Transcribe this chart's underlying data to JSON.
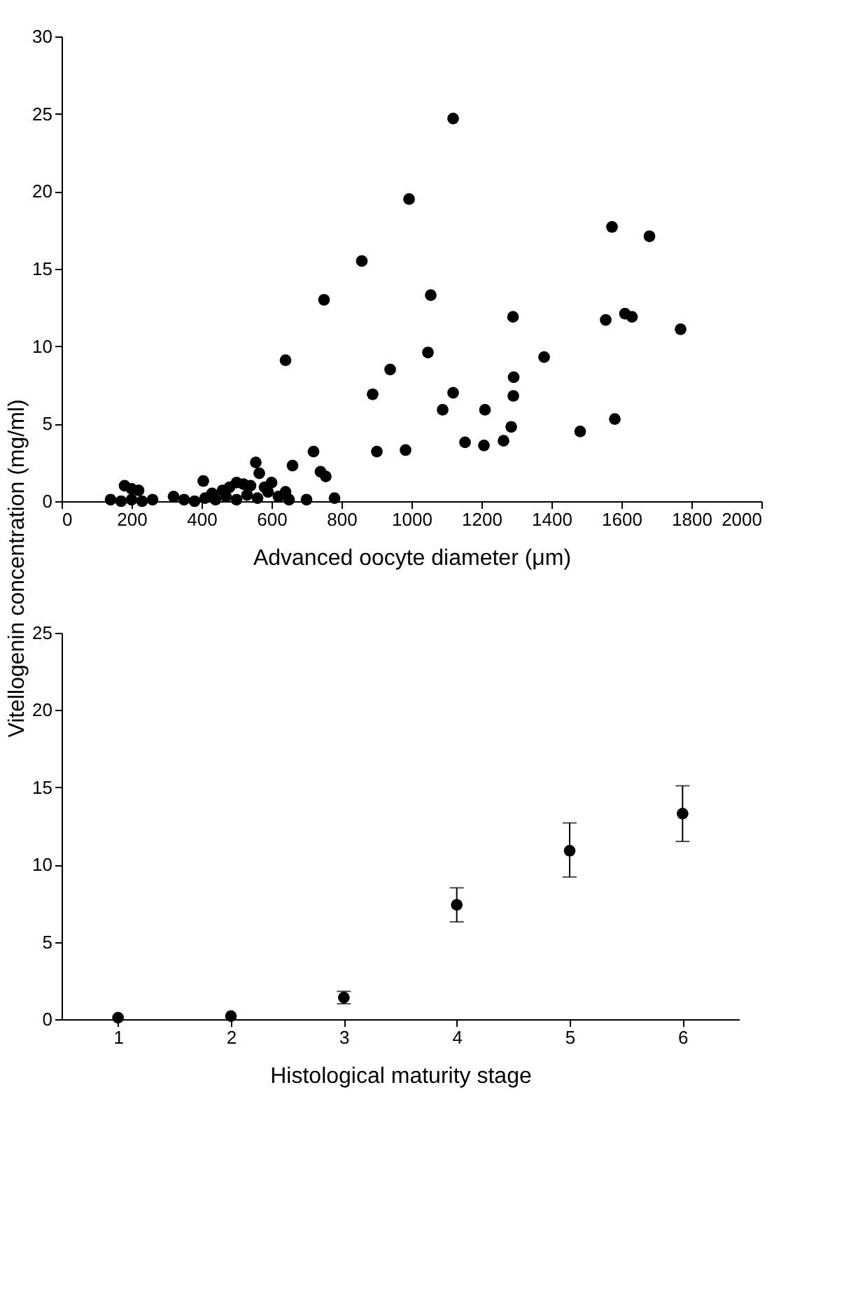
{
  "chart_data": [
    {
      "type": "scatter",
      "xlabel": "Advanced oocyte diameter (μm)",
      "ylabel": "Vitellogenin concentration (mg/ml)",
      "xlim": [
        0,
        2000
      ],
      "xticks": [
        0,
        200,
        400,
        600,
        800,
        1000,
        1200,
        1400,
        1600,
        1800,
        2000
      ],
      "ylim": [
        0,
        30
      ],
      "yticks": [
        0,
        5,
        10,
        15,
        20,
        25,
        30
      ],
      "grid": false,
      "marker": "circle",
      "series": [
        {
          "color": "#000000",
          "x": [
            140,
            170,
            200,
            230,
            260,
            320,
            350,
            380,
            410,
            440,
            470,
            500,
            530,
            560,
            590,
            620,
            650,
            700,
            180,
            200,
            220,
            405,
            430,
            460,
            480,
            500,
            520,
            540,
            555,
            565,
            580,
            600,
            620,
            640,
            660,
            720,
            740,
            755,
            780,
            640,
            750,
            858,
            889,
            901,
            939,
            983,
            993,
            1047,
            1055,
            1089,
            1119,
            1119,
            1153,
            1207,
            1210,
            1263,
            1285,
            1290,
            1291,
            1292,
            1379,
            1482,
            1555,
            1573,
            1581,
            1610,
            1630,
            1680,
            1769
          ],
          "values": [
            0.1,
            0.0,
            0.1,
            0.0,
            0.1,
            0.3,
            0.1,
            0.0,
            0.2,
            0.1,
            0.3,
            0.1,
            0.4,
            0.2,
            0.6,
            0.3,
            0.1,
            0.1,
            1.0,
            0.8,
            0.7,
            1.3,
            0.5,
            0.7,
            0.9,
            1.2,
            1.1,
            1.0,
            2.5,
            1.8,
            0.9,
            1.2,
            0.3,
            0.6,
            2.3,
            3.2,
            1.9,
            1.6,
            0.2,
            9.1,
            13.0,
            15.5,
            6.9,
            3.2,
            8.5,
            3.3,
            19.5,
            9.6,
            13.3,
            5.9,
            24.7,
            7.0,
            3.8,
            3.6,
            5.9,
            3.9,
            4.8,
            11.9,
            6.8,
            8.0,
            9.3,
            4.5,
            11.7,
            17.7,
            5.3,
            12.1,
            11.9,
            17.1,
            11.1
          ]
        }
      ]
    },
    {
      "type": "scatter",
      "xlabel": "Histological maturity stage",
      "xlim": [
        0.5,
        6.5
      ],
      "xticks": [
        1,
        2,
        3,
        4,
        5,
        6
      ],
      "ylim": [
        0,
        25
      ],
      "yticks": [
        0,
        5,
        10,
        15,
        20,
        25
      ],
      "grid": false,
      "marker": "circle",
      "series": [
        {
          "color": "#000000",
          "x": [
            1,
            2,
            3,
            4,
            5,
            6
          ],
          "values": [
            0.1,
            0.2,
            1.4,
            7.4,
            10.9,
            13.3
          ],
          "errors": [
            null,
            null,
            [
              1.0,
              1.8
            ],
            [
              6.3,
              8.5
            ],
            [
              9.2,
              12.7
            ],
            [
              11.5,
              15.1
            ]
          ]
        }
      ]
    }
  ]
}
